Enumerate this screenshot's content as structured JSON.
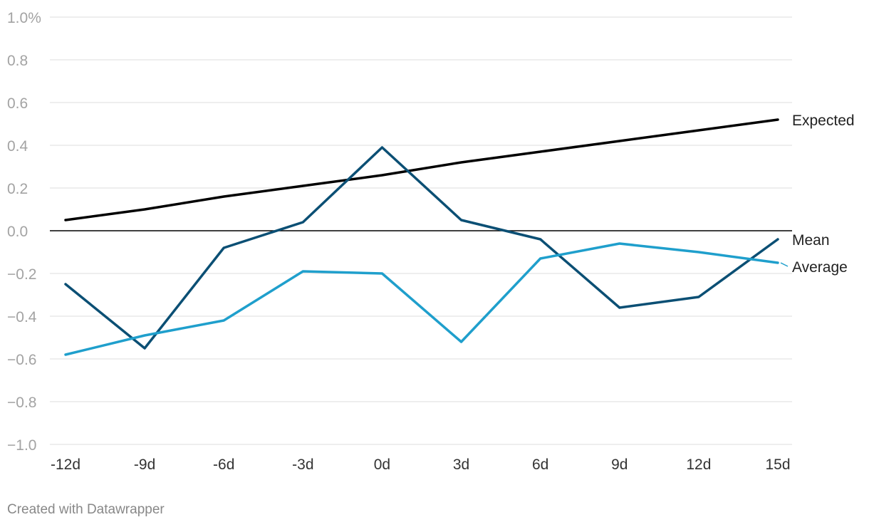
{
  "chart_data": {
    "type": "line",
    "title": "",
    "xlabel": "",
    "ylabel": "",
    "categories": [
      "-12d",
      "-9d",
      "-6d",
      "-3d",
      "0d",
      "3d",
      "6d",
      "9d",
      "12d",
      "15d"
    ],
    "ylim": [
      -1.0,
      1.0
    ],
    "yticks": [
      1.0,
      0.8,
      0.6,
      0.4,
      0.2,
      0.0,
      -0.2,
      -0.4,
      -0.6,
      -0.8,
      -1.0
    ],
    "ytick_labels": [
      "1.0%",
      "0.8",
      "0.6",
      "0.4",
      "0.2",
      "0.0",
      "−0.2",
      "−0.4",
      "−0.6",
      "−0.8",
      "−1.0"
    ],
    "grid": true,
    "series": [
      {
        "name": "Expected",
        "color": "#000000",
        "values": [
          0.05,
          0.1,
          0.16,
          0.21,
          0.26,
          0.32,
          0.37,
          0.42,
          0.47,
          0.52
        ]
      },
      {
        "name": "Mean",
        "color": "#0b4f74",
        "values": [
          -0.25,
          -0.55,
          -0.08,
          0.04,
          0.39,
          0.05,
          -0.04,
          -0.36,
          -0.31,
          -0.04
        ]
      },
      {
        "name": "Average",
        "color": "#1f9fcc",
        "values": [
          -0.58,
          -0.49,
          -0.42,
          -0.19,
          -0.2,
          -0.52,
          -0.13,
          -0.06,
          -0.1,
          -0.15
        ]
      }
    ]
  },
  "footer": {
    "credit": "Created with Datawrapper"
  }
}
